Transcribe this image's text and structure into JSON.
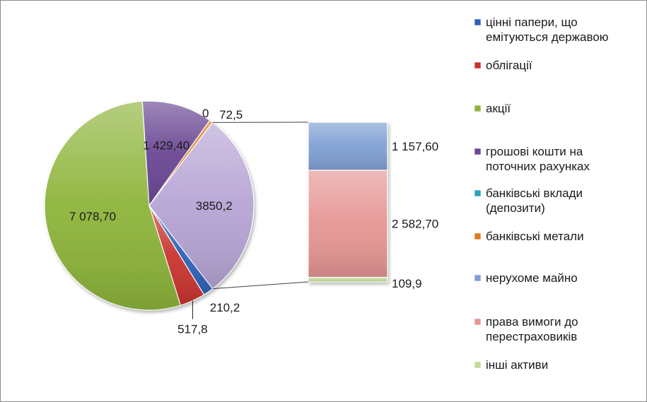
{
  "chart_data": {
    "type": "pie",
    "subtype": "bar-of-pie",
    "series": [
      {
        "name": "цінні папери, що емітуються державою",
        "value": 210.2,
        "label": "210,2",
        "color": "#2e62b8"
      },
      {
        "name": "облігації",
        "value": 517.8,
        "label": "517,8",
        "color": "#c8332e"
      },
      {
        "name": "акції",
        "value": 7078.7,
        "label": "7 078,70",
        "color": "#8db43a"
      },
      {
        "name": "грошові кошти на поточних рахунках",
        "value": 1429.4,
        "label": "1 429,40",
        "color": "#6a4793"
      },
      {
        "name": "банківські вклади (депозити)",
        "value": 0,
        "label": "0",
        "color": "#2aa2bf"
      },
      {
        "name": "банківські метали",
        "value": 72.5,
        "label": "72,5",
        "color": "#e07a1e"
      },
      {
        "name": "нерухоме майно",
        "value": 1157.6,
        "label": "1 157,60",
        "color": "#7f9fd2",
        "in_bar": true
      },
      {
        "name": "права вимоги до перестраховиків",
        "value": 2582.7,
        "label": "2 582,70",
        "color": "#e59593",
        "in_bar": true
      },
      {
        "name": "інші активи",
        "value": 109.9,
        "label": "109,9",
        "color": "#c2da95",
        "in_bar": true
      }
    ],
    "other_slice": {
      "value": 3850.2,
      "label": "3850,2",
      "color": "#b6a4d4"
    },
    "legend": {
      "placement": "right"
    }
  },
  "legend": {
    "items": [
      {
        "lines": [
          "цінні папери, що",
          "емітуються державою"
        ],
        "color": "#2e62b8"
      },
      {
        "lines": [
          "облігації"
        ],
        "color": "#c8332e"
      },
      {
        "lines": [
          "акції"
        ],
        "color": "#8db43a"
      },
      {
        "lines": [
          "грошові кошти на",
          "поточних рахунках"
        ],
        "color": "#6a4793"
      },
      {
        "lines": [
          "банківські вклади",
          "(депозити)"
        ],
        "color": "#2aa2bf"
      },
      {
        "lines": [
          "банківські метали"
        ],
        "color": "#e07a1e"
      },
      {
        "lines": [
          "нерухоме майно"
        ],
        "color": "#7f9fd2"
      },
      {
        "lines": [
          "права вимоги до",
          "перестраховиків"
        ],
        "color": "#e59593"
      },
      {
        "lines": [
          "інші активи"
        ],
        "color": "#c2da95"
      }
    ]
  }
}
